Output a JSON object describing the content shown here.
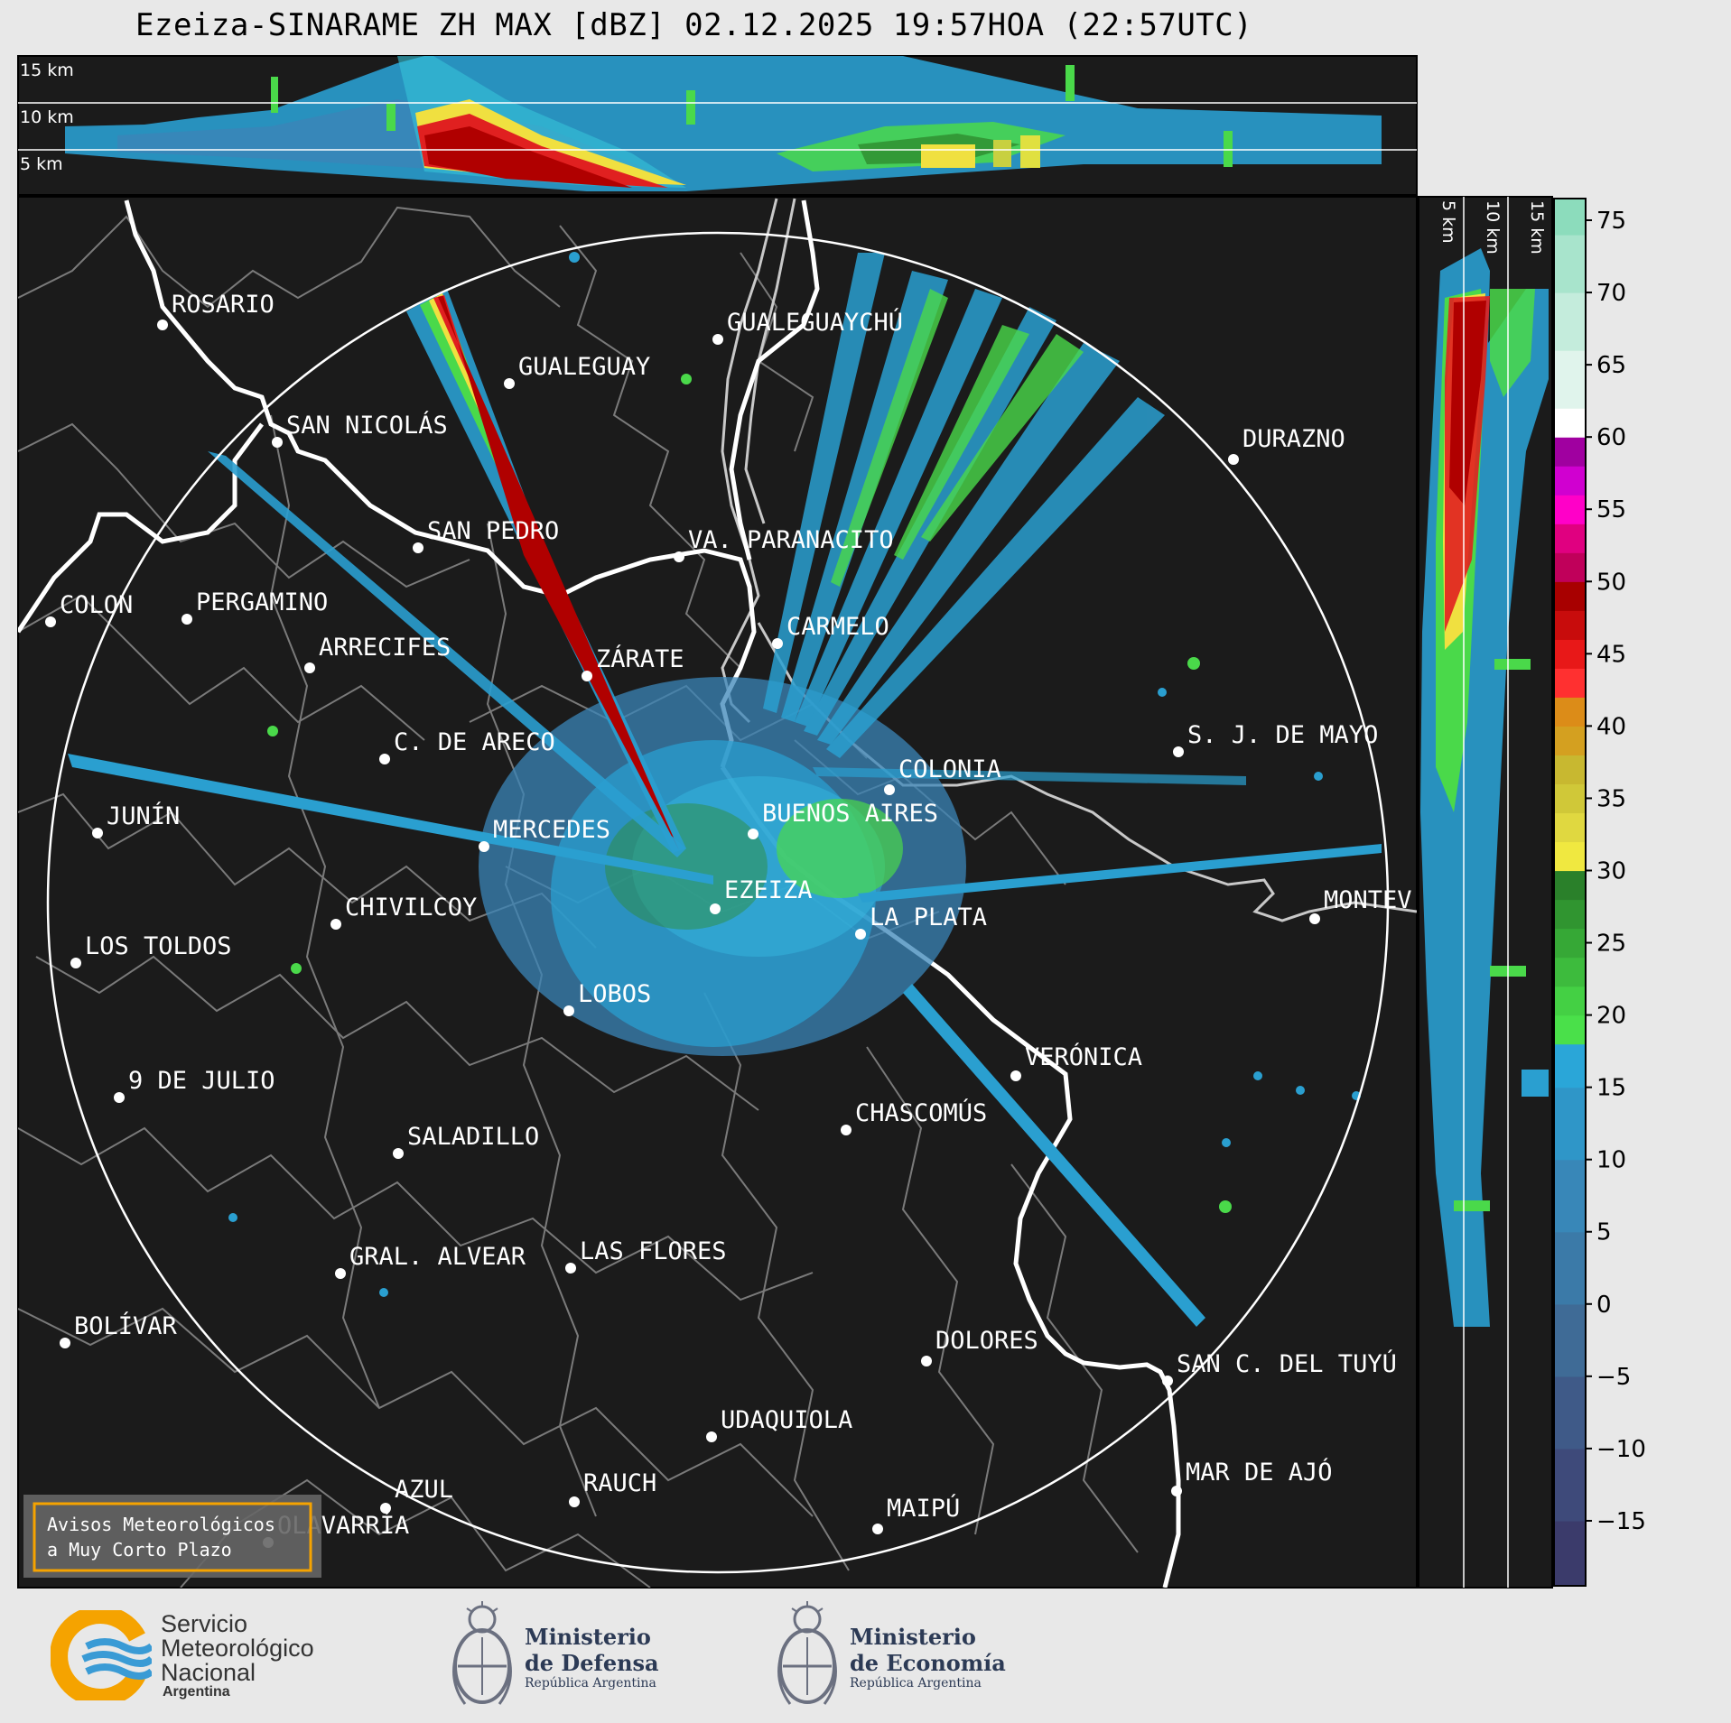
{
  "title": "Ezeiza-SINARAME ZH MAX [dBZ] 02.12.2025 19:57HOA (22:57UTC)",
  "top_panel_labels": [
    "15 km",
    "10 km",
    "5 km"
  ],
  "side_panel_labels": [
    "5 km",
    "10 km",
    "15 km"
  ],
  "colorbar": {
    "ticks": [
      "75",
      "70",
      "65",
      "60",
      "55",
      "50",
      "45",
      "40",
      "35",
      "30",
      "25",
      "20",
      "15",
      "10",
      "5",
      "0",
      "−5",
      "−10",
      "−15"
    ],
    "unit": "dBZ",
    "range": [
      -19.5,
      76.5
    ]
  },
  "cities": [
    {
      "name": "ROSARIO"
    },
    {
      "name": "GUALEGUAYCHÚ"
    },
    {
      "name": "GUALEGUAY"
    },
    {
      "name": "SAN NICOLÁS"
    },
    {
      "name": "DURAZNO"
    },
    {
      "name": "SAN PEDRO"
    },
    {
      "name": "VA. PARANACITO"
    },
    {
      "name": "COLON"
    },
    {
      "name": "PERGAMINO"
    },
    {
      "name": "CARMELO"
    },
    {
      "name": "ARRECIFES"
    },
    {
      "name": "ZÁRATE"
    },
    {
      "name": "S. J. DE MAYO"
    },
    {
      "name": "C. DE ARECO"
    },
    {
      "name": "COLONIA"
    },
    {
      "name": "JUNÍN"
    },
    {
      "name": "BUENOS AIRES"
    },
    {
      "name": "MERCEDES"
    },
    {
      "name": "EZEIZA"
    },
    {
      "name": "MONTEV"
    },
    {
      "name": "CHIVILCOY"
    },
    {
      "name": "LA PLATA"
    },
    {
      "name": "LOS TOLDOS"
    },
    {
      "name": "LOBOS"
    },
    {
      "name": "VERÓNICA"
    },
    {
      "name": "9 DE JULIO"
    },
    {
      "name": "CHASCOMÚS"
    },
    {
      "name": "SALADILLO"
    },
    {
      "name": "GRAL. ALVEAR"
    },
    {
      "name": "LAS FLORES"
    },
    {
      "name": "BOLÍVAR"
    },
    {
      "name": "DOLORES"
    },
    {
      "name": "SAN C. DEL TUYÚ"
    },
    {
      "name": "UDAQUIOLA"
    },
    {
      "name": "MAR DE AJÓ"
    },
    {
      "name": "AZUL"
    },
    {
      "name": "RAUCH"
    },
    {
      "name": "MAIPÚ"
    },
    {
      "name": "OLAVARRÍA"
    }
  ],
  "notice": {
    "line1": "Avisos Meteorológicos",
    "line2": "a Muy Corto Plazo"
  },
  "logos": {
    "smn": {
      "line1": "Servicio",
      "line2": "Meteorológico",
      "line3": "Nacional",
      "line4": "Argentina"
    },
    "defensa": {
      "line1": "Ministerio",
      "line2": "de Defensa",
      "line3": "República Argentina"
    },
    "economia": {
      "line1": "Ministerio",
      "line2": "de Economía",
      "line3": "República Argentina"
    }
  },
  "colors": {
    "map_bg": "#1b1b1b",
    "smn_orange": "#f5a300",
    "smn_blue": "#3a9bd5",
    "notice_border": "#f5a300"
  }
}
